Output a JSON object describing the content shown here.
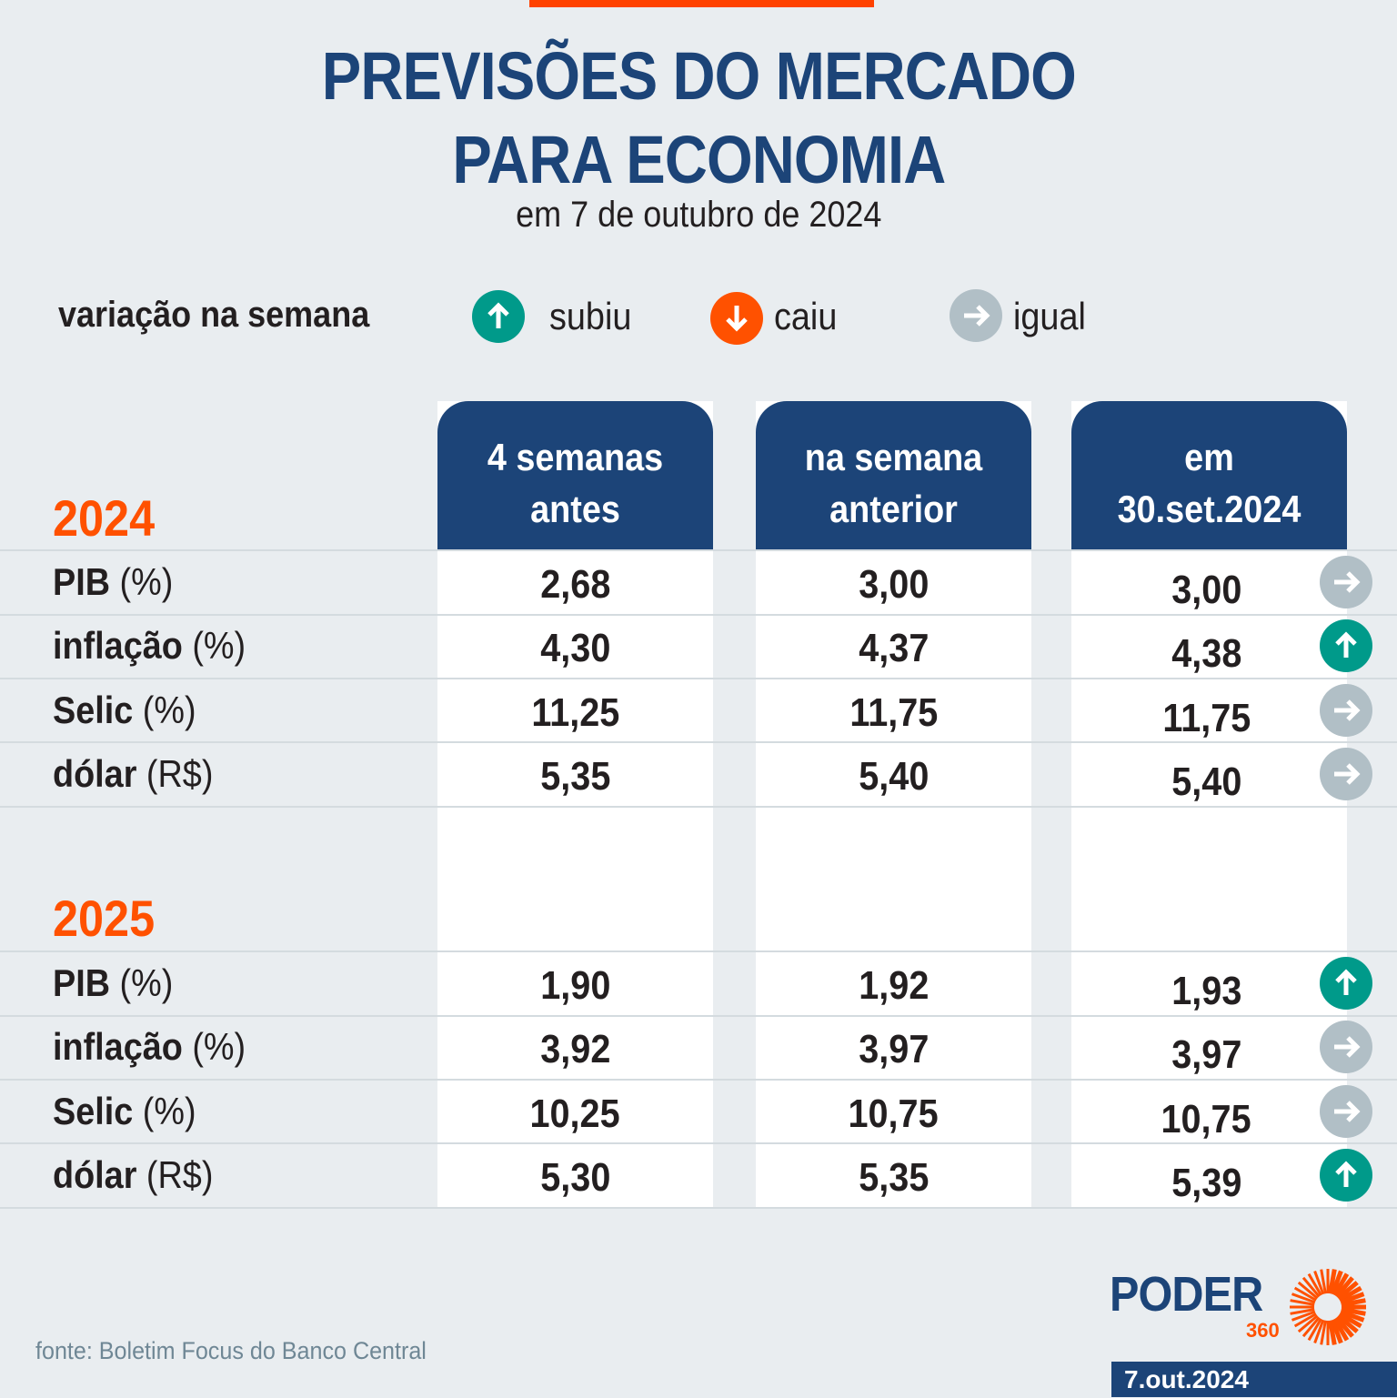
{
  "header": {
    "title_line1": "PREVISÕES DO MERCADO",
    "title_line2": "PARA ECONOMIA",
    "subtitle": "em 7 de outubro de 2024"
  },
  "legend": {
    "title": "variação na semana",
    "items": [
      {
        "icon": "arrow-up-icon",
        "label": "subiu",
        "color": "#009a8a"
      },
      {
        "icon": "arrow-down-icon",
        "label": "caiu",
        "color": "#ff5100"
      },
      {
        "icon": "arrow-right-icon",
        "label": "igual",
        "color": "#b1bfc6"
      }
    ]
  },
  "table": {
    "columns": [
      {
        "line1": "4 semanas",
        "line2": "antes"
      },
      {
        "line1": "na semana",
        "line2": "anterior"
      },
      {
        "line1": "em",
        "line2": "30.set.2024"
      }
    ],
    "sections": [
      {
        "year": "2024",
        "rows": [
          {
            "name": "PIB",
            "unit": "(%)",
            "values": [
              "2,68",
              "3,00",
              "3,00"
            ],
            "variation": "igual"
          },
          {
            "name": "inflação",
            "unit": "(%)",
            "values": [
              "4,30",
              "4,37",
              "4,38"
            ],
            "variation": "subiu"
          },
          {
            "name": "Selic",
            "unit": "(%)",
            "values": [
              "11,25",
              "11,75",
              "11,75"
            ],
            "variation": "igual"
          },
          {
            "name": "dólar",
            "unit": "(R$)",
            "values": [
              "5,35",
              "5,40",
              "5,40"
            ],
            "variation": "igual"
          }
        ]
      },
      {
        "year": "2025",
        "rows": [
          {
            "name": "PIB",
            "unit": "(%)",
            "values": [
              "1,90",
              "1,92",
              "1,93"
            ],
            "variation": "subiu"
          },
          {
            "name": "inflação",
            "unit": "(%)",
            "values": [
              "3,92",
              "3,97",
              "3,97"
            ],
            "variation": "igual"
          },
          {
            "name": "Selic",
            "unit": "(%)",
            "values": [
              "10,25",
              "10,75",
              "10,75"
            ],
            "variation": "igual"
          },
          {
            "name": "dólar",
            "unit": "(R$)",
            "values": [
              "5,30",
              "5,35",
              "5,39"
            ],
            "variation": "subiu"
          }
        ]
      }
    ]
  },
  "footer": {
    "source": "fonte: Boletim Focus do Banco Central",
    "logo_text": "PODER",
    "logo_sub": "360",
    "date": "7.out.2024"
  },
  "colors": {
    "background": "#e9edf0",
    "navy": "#1c4478",
    "orange": "#ff5100",
    "top_bar": "#ff4200",
    "up": "#009a8a",
    "same": "#b1bfc6"
  }
}
